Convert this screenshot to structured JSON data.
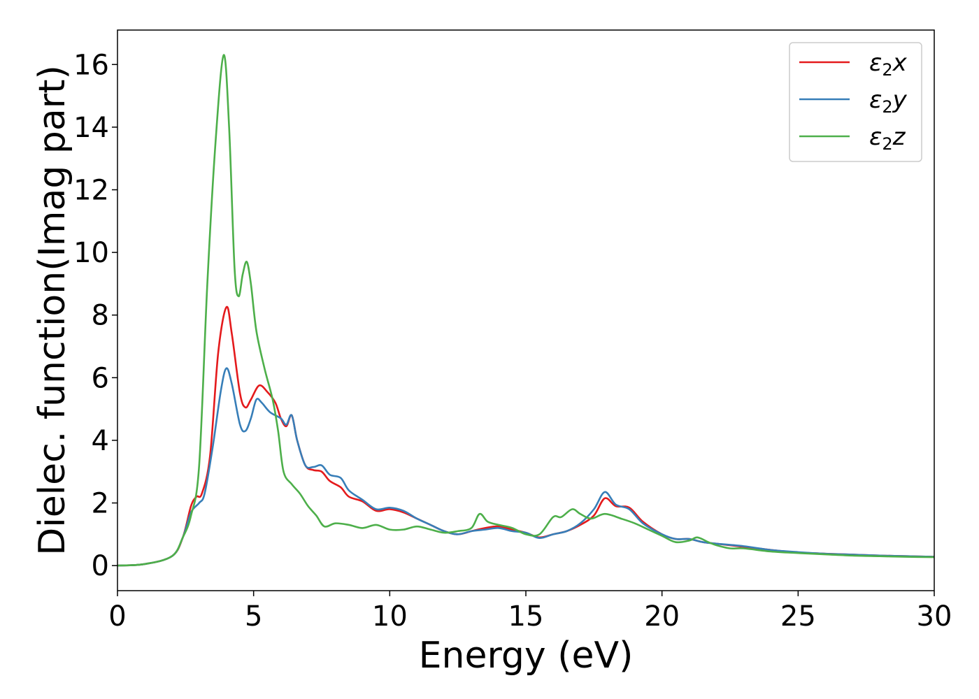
{
  "chart_data": {
    "type": "line",
    "xlabel": "Energy (eV)",
    "ylabel": "Dielec. function(Imag part)",
    "xlim": [
      0,
      30
    ],
    "ylim": [
      -0.8,
      17.1
    ],
    "xticks": [
      0,
      5,
      10,
      15,
      20,
      25,
      30
    ],
    "yticks": [
      0,
      2,
      4,
      6,
      8,
      10,
      12,
      14,
      16
    ],
    "grid": false,
    "legend": "top-right",
    "series": [
      {
        "name": "ε2x",
        "legend_base": "ε",
        "legend_sub": "2",
        "legend_suffix": "x",
        "color": "#e41a1c",
        "points": [
          [
            0,
            0
          ],
          [
            1,
            0.05
          ],
          [
            2,
            0.3
          ],
          [
            2.4,
            0.9
          ],
          [
            2.7,
            1.9
          ],
          [
            2.9,
            2.2
          ],
          [
            3.1,
            2.3
          ],
          [
            3.4,
            3.5
          ],
          [
            3.7,
            6.8
          ],
          [
            4.0,
            8.25
          ],
          [
            4.2,
            7.4
          ],
          [
            4.5,
            5.5
          ],
          [
            4.7,
            5.05
          ],
          [
            4.9,
            5.3
          ],
          [
            5.2,
            5.75
          ],
          [
            5.5,
            5.55
          ],
          [
            5.8,
            5.2
          ],
          [
            6.0,
            4.7
          ],
          [
            6.2,
            4.45
          ],
          [
            6.4,
            4.8
          ],
          [
            6.6,
            4.0
          ],
          [
            6.9,
            3.2
          ],
          [
            7.2,
            3.05
          ],
          [
            7.5,
            3.0
          ],
          [
            7.8,
            2.7
          ],
          [
            8.2,
            2.5
          ],
          [
            8.5,
            2.2
          ],
          [
            9.0,
            2.05
          ],
          [
            9.5,
            1.75
          ],
          [
            10.0,
            1.8
          ],
          [
            10.5,
            1.7
          ],
          [
            11.0,
            1.5
          ],
          [
            11.5,
            1.3
          ],
          [
            12.0,
            1.1
          ],
          [
            12.5,
            1.0
          ],
          [
            13.0,
            1.1
          ],
          [
            13.5,
            1.2
          ],
          [
            14.0,
            1.25
          ],
          [
            14.5,
            1.15
          ],
          [
            15.0,
            1.05
          ],
          [
            15.5,
            0.9
          ],
          [
            16.0,
            1.0
          ],
          [
            16.5,
            1.1
          ],
          [
            17.0,
            1.3
          ],
          [
            17.5,
            1.6
          ],
          [
            17.9,
            2.15
          ],
          [
            18.3,
            1.9
          ],
          [
            18.8,
            1.85
          ],
          [
            19.3,
            1.4
          ],
          [
            20.0,
            1.0
          ],
          [
            20.5,
            0.85
          ],
          [
            21.0,
            0.85
          ],
          [
            21.5,
            0.75
          ],
          [
            22.0,
            0.7
          ],
          [
            23.0,
            0.6
          ],
          [
            24.0,
            0.5
          ],
          [
            25.0,
            0.42
          ],
          [
            26.0,
            0.38
          ],
          [
            27.0,
            0.35
          ],
          [
            28.0,
            0.32
          ],
          [
            29.0,
            0.3
          ],
          [
            30.0,
            0.28
          ]
        ]
      },
      {
        "name": "ε2y",
        "legend_base": "ε",
        "legend_sub": "2",
        "legend_suffix": "y",
        "color": "#377eb8",
        "points": [
          [
            0,
            0
          ],
          [
            1,
            0.05
          ],
          [
            2,
            0.3
          ],
          [
            2.4,
            0.9
          ],
          [
            2.7,
            1.7
          ],
          [
            3.0,
            2.0
          ],
          [
            3.2,
            2.3
          ],
          [
            3.5,
            3.8
          ],
          [
            3.8,
            5.6
          ],
          [
            4.0,
            6.3
          ],
          [
            4.2,
            5.8
          ],
          [
            4.5,
            4.5
          ],
          [
            4.7,
            4.3
          ],
          [
            4.9,
            4.7
          ],
          [
            5.1,
            5.3
          ],
          [
            5.3,
            5.2
          ],
          [
            5.6,
            4.9
          ],
          [
            6.0,
            4.7
          ],
          [
            6.2,
            4.5
          ],
          [
            6.4,
            4.8
          ],
          [
            6.6,
            4.0
          ],
          [
            6.9,
            3.2
          ],
          [
            7.2,
            3.15
          ],
          [
            7.5,
            3.2
          ],
          [
            7.8,
            2.9
          ],
          [
            8.2,
            2.8
          ],
          [
            8.5,
            2.4
          ],
          [
            9.0,
            2.1
          ],
          [
            9.5,
            1.8
          ],
          [
            10.0,
            1.85
          ],
          [
            10.5,
            1.75
          ],
          [
            11.0,
            1.5
          ],
          [
            11.5,
            1.3
          ],
          [
            12.0,
            1.1
          ],
          [
            12.5,
            1.0
          ],
          [
            13.0,
            1.1
          ],
          [
            13.5,
            1.15
          ],
          [
            14.0,
            1.2
          ],
          [
            14.5,
            1.1
          ],
          [
            15.0,
            1.05
          ],
          [
            15.5,
            0.88
          ],
          [
            16.0,
            1.0
          ],
          [
            16.5,
            1.1
          ],
          [
            17.0,
            1.35
          ],
          [
            17.5,
            1.8
          ],
          [
            17.9,
            2.35
          ],
          [
            18.3,
            1.95
          ],
          [
            18.8,
            1.8
          ],
          [
            19.3,
            1.35
          ],
          [
            20.0,
            1.0
          ],
          [
            20.5,
            0.85
          ],
          [
            21.0,
            0.85
          ],
          [
            21.5,
            0.75
          ],
          [
            22.0,
            0.7
          ],
          [
            23.0,
            0.62
          ],
          [
            24.0,
            0.5
          ],
          [
            25.0,
            0.43
          ],
          [
            26.0,
            0.38
          ],
          [
            27.0,
            0.35
          ],
          [
            28.0,
            0.32
          ],
          [
            29.0,
            0.3
          ],
          [
            30.0,
            0.28
          ]
        ]
      },
      {
        "name": "ε2z",
        "legend_base": "ε",
        "legend_sub": "2",
        "legend_suffix": "z",
        "color": "#4daf4a",
        "points": [
          [
            0,
            0
          ],
          [
            1,
            0.05
          ],
          [
            2,
            0.3
          ],
          [
            2.4,
            0.9
          ],
          [
            2.7,
            1.6
          ],
          [
            3.0,
            3.2
          ],
          [
            3.3,
            9.0
          ],
          [
            3.6,
            13.5
          ],
          [
            3.9,
            16.3
          ],
          [
            4.1,
            14.0
          ],
          [
            4.3,
            9.5
          ],
          [
            4.45,
            8.6
          ],
          [
            4.6,
            9.3
          ],
          [
            4.75,
            9.7
          ],
          [
            4.9,
            9.0
          ],
          [
            5.1,
            7.5
          ],
          [
            5.4,
            6.3
          ],
          [
            5.7,
            5.3
          ],
          [
            5.9,
            4.3
          ],
          [
            6.1,
            3.0
          ],
          [
            6.4,
            2.6
          ],
          [
            6.7,
            2.3
          ],
          [
            7.0,
            1.9
          ],
          [
            7.3,
            1.6
          ],
          [
            7.6,
            1.25
          ],
          [
            8.0,
            1.35
          ],
          [
            8.5,
            1.3
          ],
          [
            9.0,
            1.2
          ],
          [
            9.5,
            1.3
          ],
          [
            10.0,
            1.15
          ],
          [
            10.5,
            1.15
          ],
          [
            11.0,
            1.25
          ],
          [
            11.5,
            1.15
          ],
          [
            12.0,
            1.05
          ],
          [
            12.5,
            1.1
          ],
          [
            13.0,
            1.2
          ],
          [
            13.3,
            1.65
          ],
          [
            13.6,
            1.4
          ],
          [
            14.0,
            1.3
          ],
          [
            14.5,
            1.2
          ],
          [
            15.0,
            1.0
          ],
          [
            15.5,
            1.0
          ],
          [
            16.0,
            1.55
          ],
          [
            16.3,
            1.55
          ],
          [
            16.7,
            1.8
          ],
          [
            17.0,
            1.65
          ],
          [
            17.4,
            1.5
          ],
          [
            17.9,
            1.65
          ],
          [
            18.5,
            1.5
          ],
          [
            19.0,
            1.35
          ],
          [
            19.5,
            1.15
          ],
          [
            20.0,
            0.95
          ],
          [
            20.5,
            0.75
          ],
          [
            21.0,
            0.8
          ],
          [
            21.3,
            0.9
          ],
          [
            21.7,
            0.75
          ],
          [
            22.0,
            0.65
          ],
          [
            22.5,
            0.55
          ],
          [
            23.0,
            0.55
          ],
          [
            24.0,
            0.45
          ],
          [
            25.0,
            0.4
          ],
          [
            26.0,
            0.36
          ],
          [
            27.0,
            0.32
          ],
          [
            28.0,
            0.3
          ],
          [
            29.0,
            0.28
          ],
          [
            30.0,
            0.27
          ]
        ]
      }
    ]
  }
}
